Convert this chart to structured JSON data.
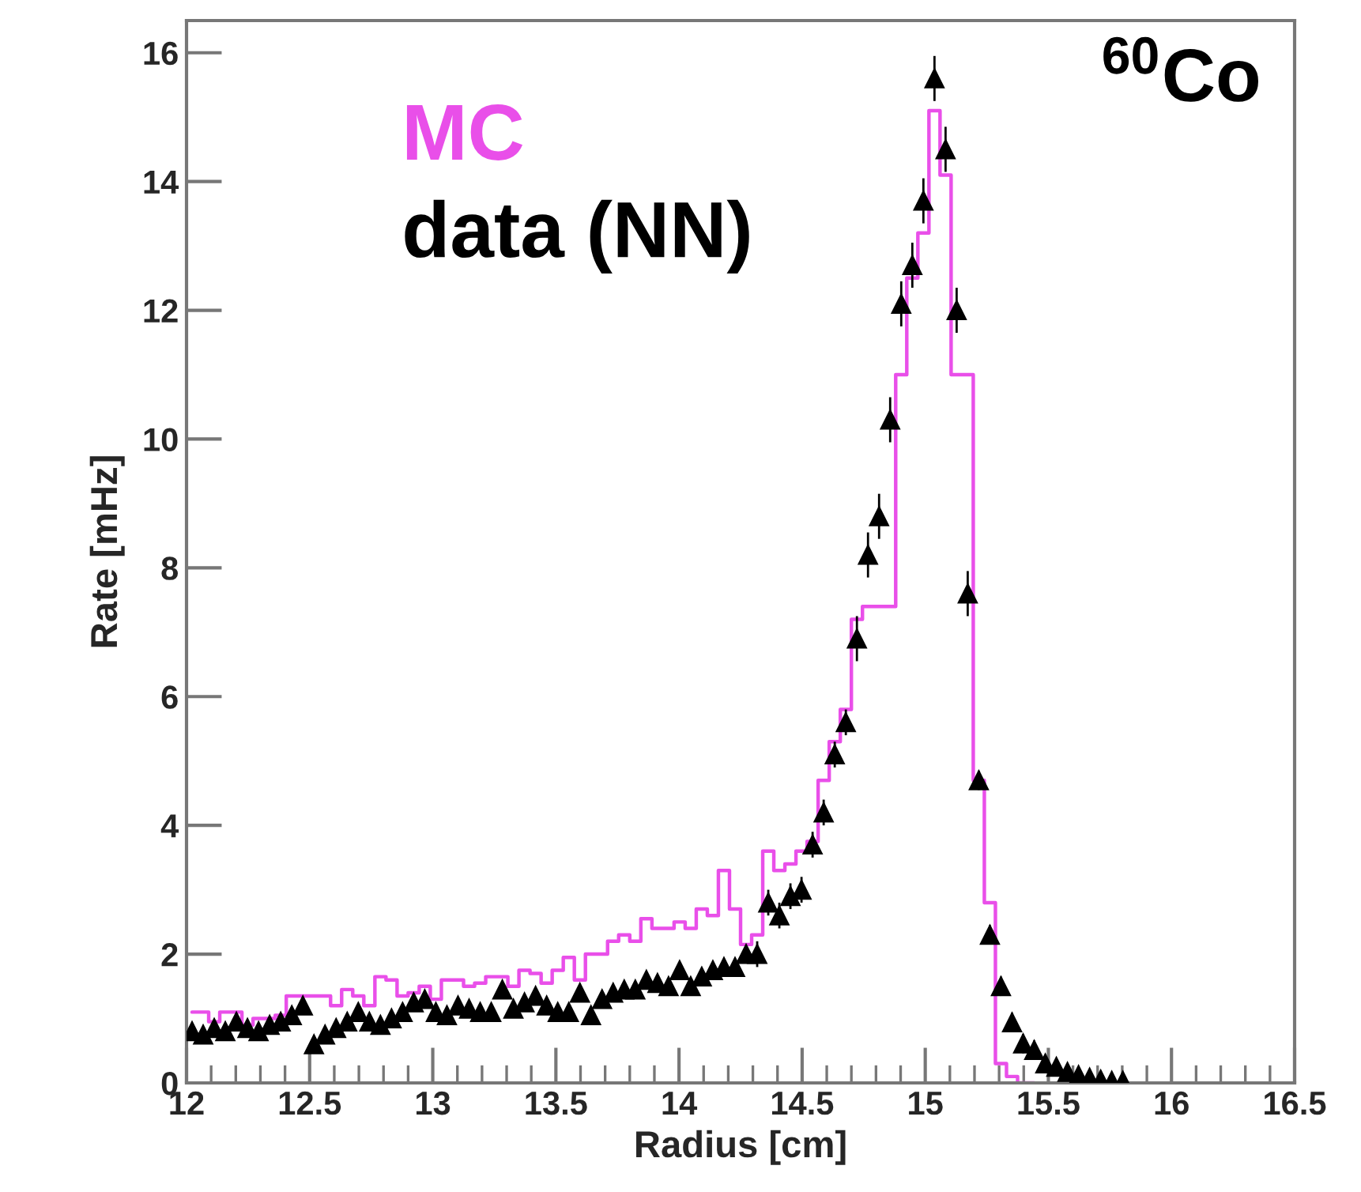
{
  "chart_data": {
    "type": "step",
    "xlabel": "Radius [cm]",
    "ylabel": "Rate [mHz]",
    "series": [
      {
        "name": "MC",
        "color": "#e94fe9",
        "x": [
          12.0225,
          12.0675,
          12.1125,
          12.1575,
          12.2025,
          12.2475,
          12.2925,
          12.3375,
          12.3825,
          12.4275,
          12.4725,
          12.5175,
          12.5625,
          12.6075,
          12.6525,
          12.6975,
          12.7425,
          12.7875,
          12.8325,
          12.8775,
          12.9225,
          12.9675,
          13.0125,
          13.0575,
          13.1025,
          13.1475,
          13.1925,
          13.2375,
          13.2825,
          13.3275,
          13.3725,
          13.4175,
          13.4625,
          13.5075,
          13.5525,
          13.5975,
          13.6425,
          13.6875,
          13.7325,
          13.7775,
          13.8225,
          13.8675,
          13.9125,
          13.9575,
          14.0025,
          14.0475,
          14.0925,
          14.1375,
          14.1825,
          14.2275,
          14.2725,
          14.3175,
          14.3625,
          14.4075,
          14.4525,
          14.4975,
          14.5425,
          14.5875,
          14.6325,
          14.6775,
          14.7225,
          14.7675,
          14.8125,
          14.8575,
          14.9025,
          14.9475,
          14.9925,
          15.0375,
          15.0825,
          15.1275,
          15.1725,
          15.2175,
          15.2625,
          15.3075,
          15.3525,
          15.3975,
          15.4425
        ],
        "values": [
          1.1,
          1.1,
          0.95,
          1.1,
          1.1,
          0.9,
          1.0,
          1.0,
          1.05,
          1.35,
          1.35,
          1.35,
          1.35,
          1.2,
          1.45,
          1.35,
          1.2,
          1.65,
          1.6,
          1.35,
          1.4,
          1.5,
          1.3,
          1.6,
          1.6,
          1.5,
          1.55,
          1.65,
          1.65,
          1.5,
          1.75,
          1.7,
          1.55,
          1.75,
          1.95,
          1.6,
          2.0,
          2.0,
          2.2,
          2.3,
          2.2,
          2.55,
          2.4,
          2.4,
          2.5,
          2.4,
          2.7,
          2.6,
          3.3,
          2.7,
          2.15,
          2.3,
          3.6,
          3.3,
          3.4,
          3.6,
          3.75,
          4.7,
          5.3,
          5.8,
          7.2,
          7.4,
          7.4,
          7.4,
          11.0,
          12.5,
          13.2,
          15.1,
          14.1,
          11.0,
          11.0,
          4.7,
          2.8,
          0.3,
          0.1,
          0,
          0
        ]
      },
      {
        "name": "data (NN)",
        "type": "scatter",
        "color": "#000000",
        "marker": "triangle",
        "x": [
          12.0225,
          12.0675,
          12.1125,
          12.1575,
          12.2025,
          12.2475,
          12.2925,
          12.3375,
          12.3825,
          12.4275,
          12.4725,
          12.5175,
          12.5625,
          12.6075,
          12.6525,
          12.6975,
          12.7425,
          12.7875,
          12.8325,
          12.8775,
          12.9225,
          12.9675,
          13.0125,
          13.0575,
          13.1025,
          13.1475,
          13.1925,
          13.2375,
          13.2825,
          13.3275,
          13.3725,
          13.4175,
          13.4625,
          13.5075,
          13.5525,
          13.5975,
          13.6425,
          13.6875,
          13.7325,
          13.7775,
          13.8225,
          13.8675,
          13.9125,
          13.9575,
          14.0025,
          14.0475,
          14.0925,
          14.1375,
          14.1825,
          14.2275,
          14.2725,
          14.3175,
          14.3625,
          14.4075,
          14.4525,
          14.4975,
          14.5425,
          14.5875,
          14.6325,
          14.6775,
          14.7225,
          14.7675,
          14.8125,
          14.8575,
          14.9025,
          14.9475,
          14.9925,
          15.0375,
          15.0825,
          15.1275,
          15.1725,
          15.2175,
          15.2625,
          15.3075,
          15.3525,
          15.3975,
          15.4425,
          15.4875,
          15.5325,
          15.5775,
          15.6225,
          15.6675,
          15.7125,
          15.7575,
          15.8025
        ],
        "values": [
          0.8,
          0.75,
          0.85,
          0.8,
          0.95,
          0.85,
          0.8,
          0.9,
          0.95,
          1.05,
          1.2,
          0.6,
          0.75,
          0.85,
          0.95,
          1.1,
          0.95,
          0.9,
          1.0,
          1.1,
          1.25,
          1.3,
          1.1,
          1.05,
          1.2,
          1.15,
          1.1,
          1.1,
          1.45,
          1.15,
          1.25,
          1.35,
          1.2,
          1.1,
          1.1,
          1.4,
          1.05,
          1.3,
          1.4,
          1.45,
          1.45,
          1.6,
          1.55,
          1.5,
          1.75,
          1.5,
          1.65,
          1.75,
          1.8,
          1.8,
          2.0,
          2.0,
          2.8,
          2.6,
          2.9,
          3.0,
          3.7,
          4.2,
          5.1,
          5.6,
          6.9,
          8.2,
          8.8,
          10.3,
          12.1,
          12.7,
          13.7,
          15.6,
          14.5,
          12.0,
          7.6,
          4.7,
          2.3,
          1.5,
          0.94,
          0.61,
          0.51,
          0.3,
          0.25,
          0.17,
          0.12,
          0.08,
          0.05,
          0.03,
          0.03
        ],
        "errors": [
          0.1,
          0.1,
          0.1,
          0.1,
          0.1,
          0.1,
          0.1,
          0.1,
          0.1,
          0.1,
          0.1,
          0.1,
          0.1,
          0.1,
          0.1,
          0.1,
          0.1,
          0.1,
          0.1,
          0.1,
          0.1,
          0.1,
          0.1,
          0.1,
          0.1,
          0.1,
          0.1,
          0.1,
          0.1,
          0.1,
          0.1,
          0.1,
          0.1,
          0.1,
          0.1,
          0.1,
          0.1,
          0.1,
          0.1,
          0.1,
          0.1,
          0.1,
          0.1,
          0.1,
          0.1,
          0.1,
          0.1,
          0.1,
          0.1,
          0.1,
          0.1,
          0.2,
          0.2,
          0.2,
          0.2,
          0.2,
          0.2,
          0.2,
          0.2,
          0.2,
          0.35,
          0.35,
          0.35,
          0.35,
          0.35,
          0.35,
          0.35,
          0.35,
          0.35,
          0.35,
          0.35,
          0.15,
          0.15,
          0.15,
          0.15,
          0.15,
          0.15,
          0.05,
          0.05,
          0.05,
          0.05,
          0.05,
          0.05,
          0.05,
          0.05
        ]
      }
    ],
    "xlim": [
      12,
      16.5
    ],
    "xticks": [
      12,
      12.5,
      13,
      13.5,
      14,
      14.5,
      15,
      15.5,
      16,
      16.5
    ],
    "ylim": [
      0,
      16.5
    ],
    "yticks": [
      0,
      2,
      4,
      6,
      8,
      10,
      12,
      14,
      16
    ],
    "legend": "top left",
    "annotations": [
      "$^{60}$Co"
    ]
  }
}
